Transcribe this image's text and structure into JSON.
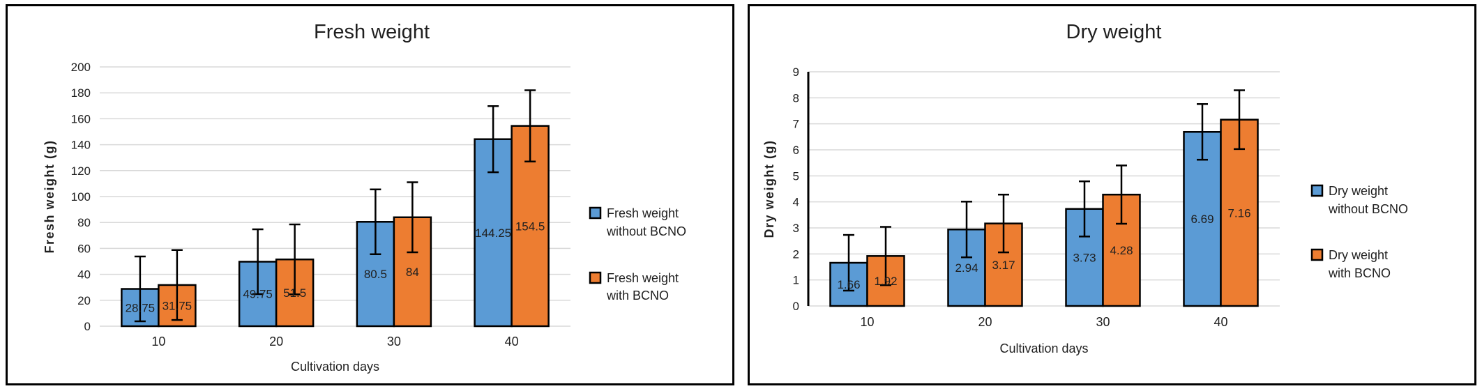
{
  "chart_data": [
    {
      "type": "bar",
      "title": "Fresh weight",
      "ylabel": "Fresh weight (g)",
      "xlabel": "Cultivation days",
      "ylim": [
        0,
        200
      ],
      "ystep": 20,
      "grid": true,
      "legend_position": "right",
      "categories": [
        "10",
        "20",
        "30",
        "40"
      ],
      "series": [
        {
          "name": "Fresh weight without  BCNO",
          "legend_lines": [
            "Fresh weight",
            "without  BCNO"
          ],
          "color": "#5B9BD5",
          "values": [
            28.75,
            49.75,
            80.5,
            144.25
          ],
          "labels": [
            "28.75",
            "49.75",
            "80.5",
            "144.25"
          ],
          "errors": [
            25,
            25,
            25,
            25.5
          ]
        },
        {
          "name": "Fresh weight with BCNO",
          "legend_lines": [
            "Fresh weight",
            "with BCNO"
          ],
          "color": "#ED7D31",
          "values": [
            31.75,
            51.5,
            84,
            154.5
          ],
          "labels": [
            "31.75",
            "51.5",
            "84",
            "154.5"
          ],
          "errors": [
            27,
            27,
            27,
            27.5
          ]
        }
      ]
    },
    {
      "type": "bar",
      "title": "Dry weight",
      "ylabel": "Dry weight (g)",
      "xlabel": "Cultivation days",
      "ylim": [
        0,
        9
      ],
      "ystep": 1,
      "grid": true,
      "legend_position": "right",
      "categories": [
        "10",
        "20",
        "30",
        "40"
      ],
      "series": [
        {
          "name": "Dry weight without  BCNO",
          "legend_lines": [
            "Dry weight",
            "without  BCNO"
          ],
          "color": "#5B9BD5",
          "values": [
            1.66,
            2.94,
            3.73,
            6.69
          ],
          "labels": [
            "1.66",
            "2.94",
            "3.73",
            "6.69"
          ],
          "errors": [
            1.07,
            1.07,
            1.06,
            1.07
          ]
        },
        {
          "name": "Dry weight with BCNO",
          "legend_lines": [
            "Dry weight",
            "with BCNO"
          ],
          "color": "#ED7D31",
          "values": [
            1.92,
            3.17,
            4.28,
            7.16
          ],
          "labels": [
            "1.92",
            "3.17",
            "4.28",
            "7.16"
          ],
          "errors": [
            1.12,
            1.11,
            1.12,
            1.13
          ]
        }
      ]
    }
  ],
  "colors": {
    "series_blue": "#5B9BD5",
    "series_orange": "#ED7D31",
    "bar_border": "#000000",
    "error_bar": "#000000",
    "gridline": "#D9D9D9",
    "axis_line": "#000000",
    "text": "#1F1F1F",
    "panel_border": "#000000",
    "background": "#FFFFFF"
  }
}
